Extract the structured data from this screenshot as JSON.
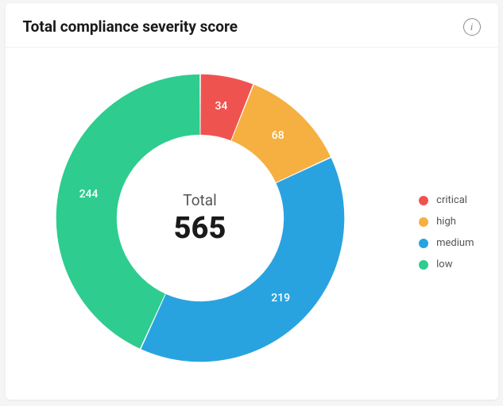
{
  "card": {
    "title": "Total compliance severity score",
    "info_tooltip": "i"
  },
  "chart": {
    "type": "donut",
    "center_label": "Total",
    "total": 565,
    "background_color": "#ffffff",
    "inner_radius_pct": 58,
    "outer_radius_pct": 100,
    "gap_deg": 0.5,
    "label_fontsize": 14,
    "label_color": "#ffffff",
    "center_label_fontsize": 19,
    "center_value_fontsize": 38,
    "slices": [
      {
        "key": "critical",
        "label": "critical",
        "value": 34,
        "color": "#ef5350"
      },
      {
        "key": "high",
        "label": "high",
        "value": 68,
        "color": "#f5b041"
      },
      {
        "key": "medium",
        "label": "medium",
        "value": 219,
        "color": "#29a3e0"
      },
      {
        "key": "low",
        "label": "low",
        "value": 244,
        "color": "#2ecc8f"
      }
    ]
  },
  "legend": {
    "fontsize": 13,
    "dot_size": 12
  }
}
